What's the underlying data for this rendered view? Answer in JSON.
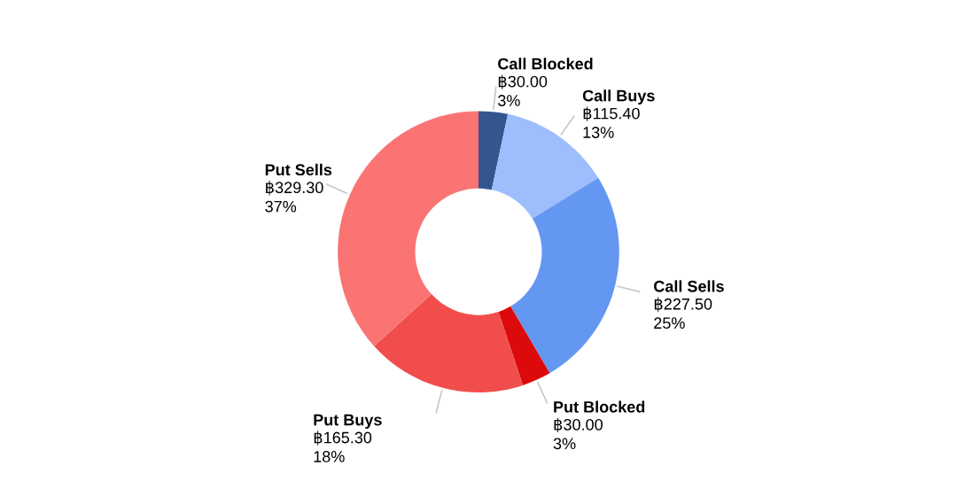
{
  "chart_data": {
    "type": "donut",
    "categories": [
      "Call Blocked",
      "Call Buys",
      "Call Sells",
      "Put Blocked",
      "Put Buys",
      "Put Sells"
    ],
    "values": [
      30.0,
      115.4,
      227.5,
      30.0,
      165.3,
      329.3
    ],
    "colors": [
      "#34568f",
      "#9dbdfd",
      "#6497f2",
      "#dc0a0a",
      "#f24d4d",
      "#fa7474"
    ],
    "value_labels": [
      "฿30.00\n3%",
      "฿115.40\n13%",
      "฿227.50\n25%",
      "฿30.00\n3%",
      "฿165.30\n18%",
      "฿329.30\n37%"
    ],
    "legend": false
  }
}
